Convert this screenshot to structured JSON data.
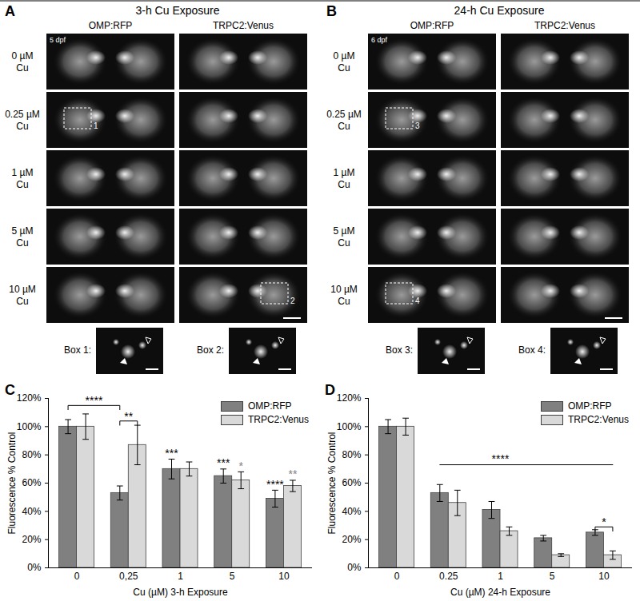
{
  "panels": [
    {
      "letter": "A",
      "title": "3-h Cu Exposure",
      "stage": "5 dpf",
      "columns": [
        "OMP:RFP",
        "TRPC2:Venus"
      ],
      "rows": [
        [
          "0 µM",
          "Cu"
        ],
        [
          "0.25 µM",
          "Cu"
        ],
        [
          "1 µM",
          "Cu"
        ],
        [
          "5 µM",
          "Cu"
        ],
        [
          "10 µM",
          "Cu"
        ]
      ],
      "boxes": [
        {
          "caption": "Box 1:",
          "number": "1",
          "row": 1,
          "column": 0
        },
        {
          "caption": "Box 2:",
          "number": "2",
          "row": 4,
          "column": 1
        }
      ]
    },
    {
      "letter": "B",
      "title": "24-h Cu Exposure",
      "stage": "6 dpf",
      "columns": [
        "OMP:RFP",
        "TRPC2:Venus"
      ],
      "rows": [
        [
          "0 µM",
          "Cu"
        ],
        [
          "0.25 µM",
          "Cu"
        ],
        [
          "1 µM",
          "Cu"
        ],
        [
          "5 µM",
          "Cu"
        ],
        [
          "10 µM",
          "Cu"
        ]
      ],
      "boxes": [
        {
          "caption": "Box 3:",
          "number": "3",
          "row": 1,
          "column": 0
        },
        {
          "caption": "Box 4:",
          "number": "4",
          "row": 4,
          "column": 0
        }
      ]
    }
  ],
  "chart_data": [
    {
      "type": "bar",
      "title": "C",
      "xlabel": "Cu (µM) 3-h Exposure",
      "ylabel": "Fluorescence % Control",
      "categories": [
        "0",
        "0,25",
        "1",
        "5",
        "10"
      ],
      "series": [
        {
          "name": "OMP:RFP",
          "color": "#808080",
          "values": [
            100,
            53,
            70,
            65,
            49
          ],
          "error": [
            5,
            5,
            7,
            5,
            6
          ]
        },
        {
          "name": "TRPC2:Venus",
          "color": "#d9d9d9",
          "values": [
            100,
            87,
            70,
            62,
            58
          ],
          "error": [
            9,
            14,
            5,
            6,
            4
          ]
        }
      ],
      "ylim": [
        0,
        120
      ],
      "yticks": [
        {
          "value": 0,
          "label": "0%"
        },
        {
          "value": 20,
          "label": "20%"
        },
        {
          "value": 40,
          "label": "40%"
        },
        {
          "value": 60,
          "label": "60%"
        },
        {
          "value": 80,
          "label": "80%"
        },
        {
          "value": 100,
          "label": "100%"
        },
        {
          "value": 120,
          "label": "120%"
        }
      ],
      "legend": "top-right",
      "annotations": [
        {
          "shape": "bracket",
          "text": "****",
          "from": [
            "0",
            "OMP:RFP"
          ],
          "to": [
            "0,25",
            "OMP:RFP"
          ],
          "y": 115,
          "color": "#000000"
        },
        {
          "shape": "bracket",
          "text": "**",
          "from": [
            "0,25",
            "OMP:RFP"
          ],
          "to": [
            "0,25",
            "TRPC2:Venus"
          ],
          "y": 104,
          "color": "#000000"
        },
        {
          "shape": "text",
          "text": "***",
          "at": [
            "1",
            "OMP:RFP"
          ],
          "y": 78,
          "color": "#000000"
        },
        {
          "shape": "text",
          "text": "***",
          "at": [
            "5",
            "OMP:RFP"
          ],
          "y": 71,
          "color": "#000000"
        },
        {
          "shape": "text",
          "text": "*",
          "at": [
            "5",
            "TRPC2:Venus"
          ],
          "y": 69,
          "color": "#808080"
        },
        {
          "shape": "text",
          "text": "****",
          "at": [
            "10",
            "OMP:RFP"
          ],
          "y": 56,
          "color": "#000000"
        },
        {
          "shape": "text",
          "text": "**",
          "at": [
            "10",
            "TRPC2:Venus"
          ],
          "y": 63,
          "color": "#808080"
        }
      ]
    },
    {
      "type": "bar",
      "title": "D",
      "xlabel": "Cu (µM) 24-h Exposure",
      "ylabel": "Fluorescence % Control",
      "categories": [
        "0",
        "0.25",
        "1",
        "5",
        "10"
      ],
      "series": [
        {
          "name": "OMP:RFP",
          "color": "#808080",
          "values": [
            100,
            53,
            41,
            21,
            25
          ],
          "error": [
            5,
            6,
            6,
            2,
            2
          ]
        },
        {
          "name": "TRPC2:Venus",
          "color": "#d9d9d9",
          "values": [
            100,
            46,
            26,
            9,
            9
          ],
          "error": [
            6,
            9,
            3,
            1,
            3
          ]
        }
      ],
      "ylim": [
        0,
        120
      ],
      "yticks": [
        {
          "value": 0,
          "label": "0%"
        },
        {
          "value": 20,
          "label": "20%"
        },
        {
          "value": 40,
          "label": "40%"
        },
        {
          "value": 60,
          "label": "60%"
        },
        {
          "value": 80,
          "label": "80%"
        },
        {
          "value": 100,
          "label": "100%"
        },
        {
          "value": 120,
          "label": "120%"
        }
      ],
      "legend": "top-right",
      "annotations": [
        {
          "shape": "line",
          "from": [
            "0.25",
            "OMP:RFP"
          ],
          "to": [
            "10",
            "TRPC2:Venus"
          ],
          "y": 73,
          "color": "#000000"
        },
        {
          "shape": "text",
          "text": "****",
          "at": [
            "1",
            null
          ],
          "y": 74,
          "color": "#000000"
        },
        {
          "shape": "bracket",
          "text": "*",
          "from": [
            "10",
            "OMP:RFP"
          ],
          "to": [
            "10",
            "TRPC2:Venus"
          ],
          "y": 29,
          "color": "#000000"
        }
      ]
    }
  ]
}
